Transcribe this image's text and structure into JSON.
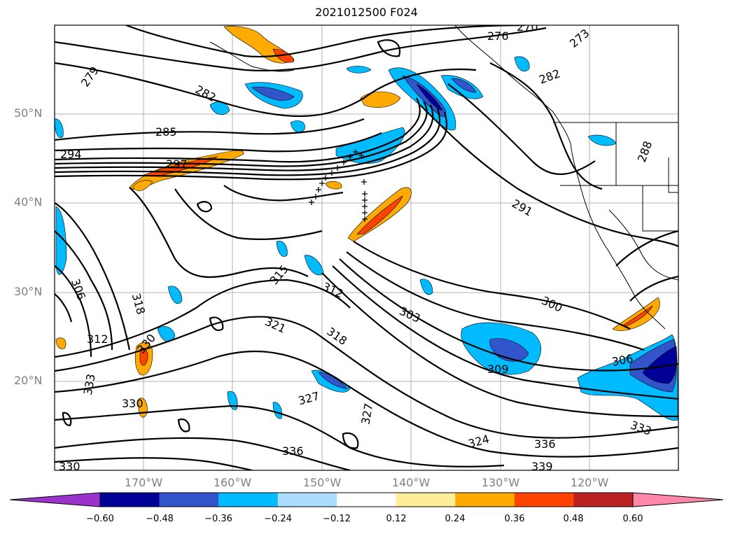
{
  "title": "2021012500 F024",
  "lat_labels": [
    {
      "text": "50°N",
      "lat": 50
    },
    {
      "text": "40°N",
      "lat": 40
    },
    {
      "text": "30°N",
      "lat": 30
    },
    {
      "text": "20°N",
      "lat": 20
    }
  ],
  "lon_labels": [
    {
      "text": "170°W",
      "lon": -170
    },
    {
      "text": "160°W",
      "lon": -160
    },
    {
      "text": "150°W",
      "lon": -150
    },
    {
      "text": "140°W",
      "lon": -140
    },
    {
      "text": "130°W",
      "lon": -130
    },
    {
      "text": "120°W",
      "lon": -120
    }
  ],
  "contour_labels": [
    "279",
    "282",
    "285",
    "294",
    "297",
    "276",
    "270",
    "273",
    "282",
    "288",
    "291",
    "315",
    "312",
    "303",
    "300",
    "321",
    "318",
    "309",
    "306",
    "330",
    "312",
    "333",
    "330",
    "327",
    "327",
    "324",
    "336",
    "336",
    "333",
    "339",
    "330",
    "306",
    "318"
  ],
  "colorbar": {
    "colors": [
      "#9933cc",
      "#000099",
      "#3355cc",
      "#00bbff",
      "#aaddff",
      "#ffffff",
      "#ffee99",
      "#ffaa00",
      "#ff4400",
      "#bb2222",
      "#ff88aa"
    ],
    "tick_labels": [
      "−0.60",
      "−0.48",
      "−0.36",
      "−0.24",
      "−0.12",
      "0.12",
      "0.24",
      "0.36",
      "0.48",
      "0.60"
    ]
  }
}
